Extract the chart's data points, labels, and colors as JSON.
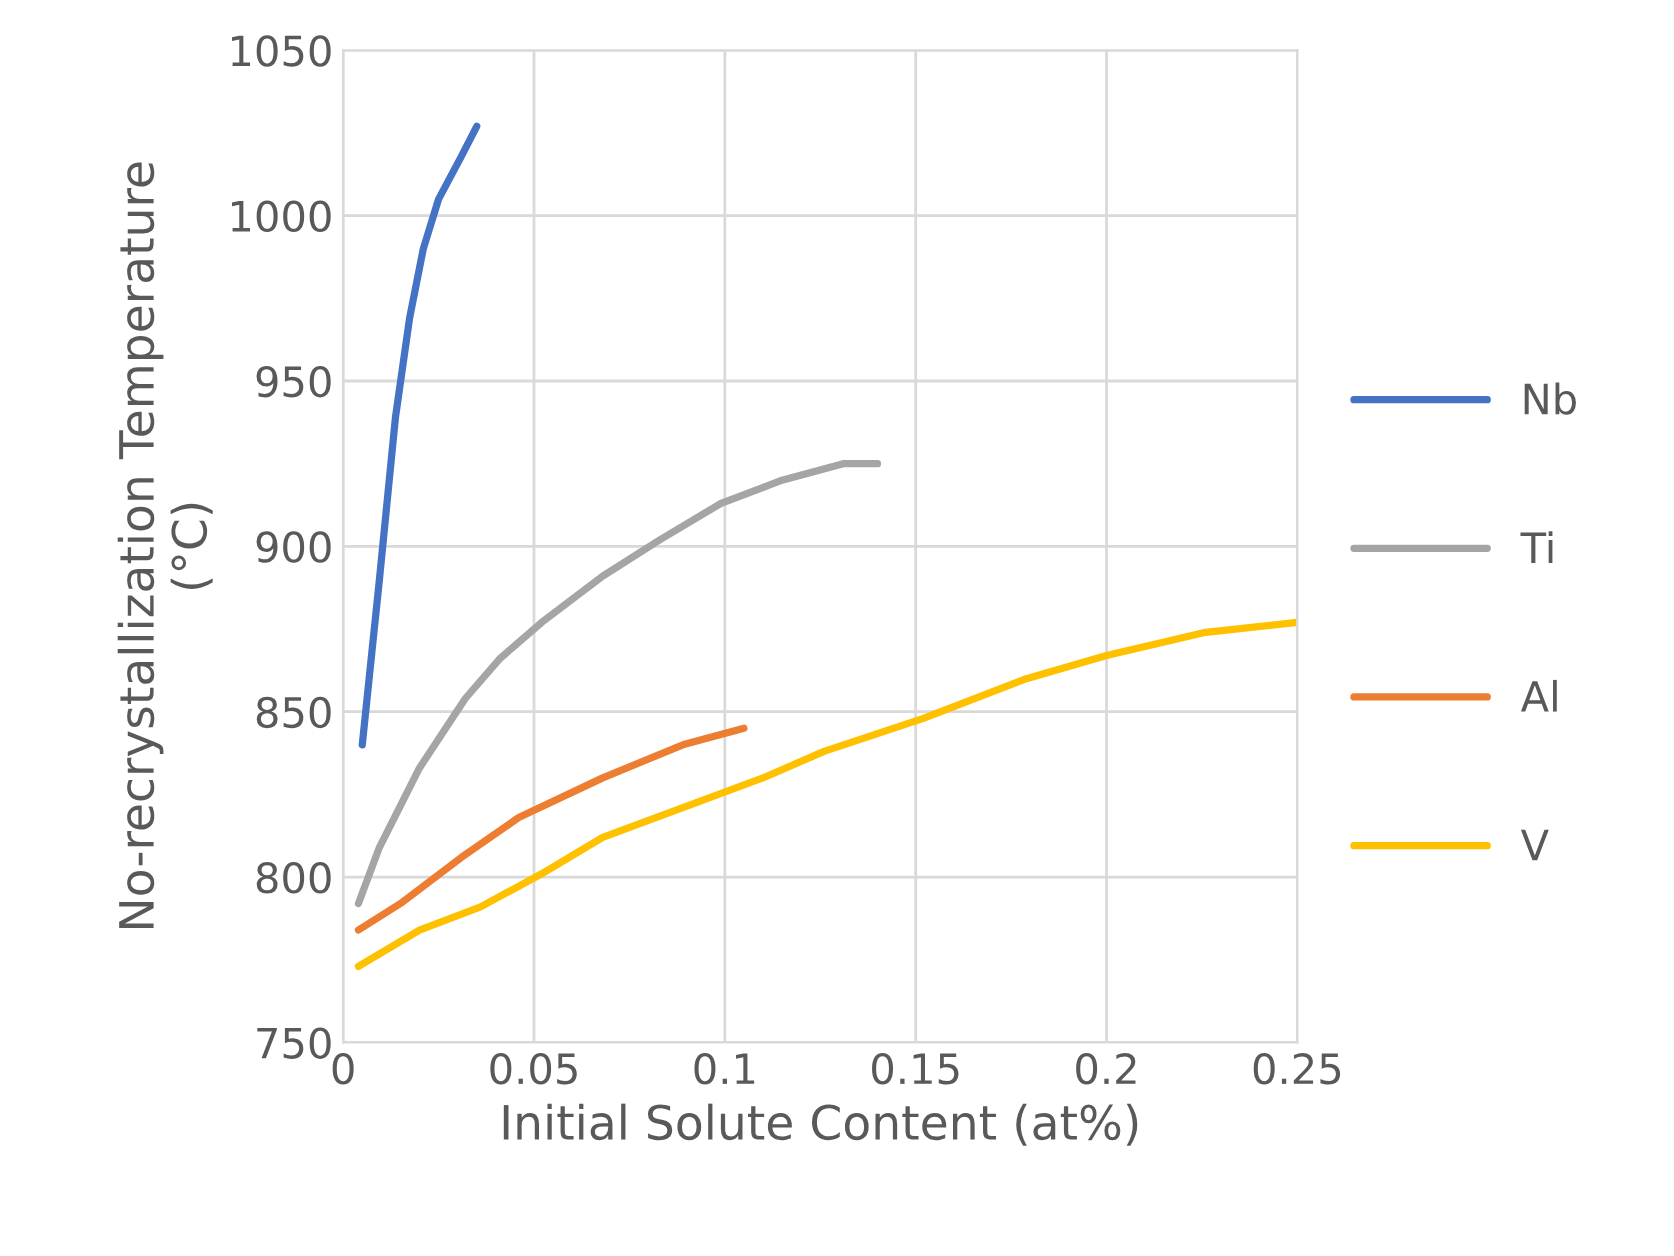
{
  "chart_data": {
    "type": "line",
    "xlabel": "Initial Solute Content (at%)",
    "ylabel": "No-recrystallization Temperature\n(°C)",
    "xlim": [
      0,
      0.25
    ],
    "xticks": [
      {
        "value": 0,
        "label": "0"
      },
      0.05,
      0.1,
      0.15,
      0.2,
      0.25
    ],
    "ylim": [
      750,
      1050
    ],
    "yticks": [
      750,
      800,
      850,
      900,
      950,
      1000,
      1050
    ],
    "grid": true,
    "legend": "right",
    "marker": "none",
    "line_style": "solid",
    "series": [
      {
        "name": "Nb",
        "color": "#4472c4",
        "x": [
          0.005,
          0.0095,
          0.0137,
          0.0174,
          0.021,
          0.025,
          0.031,
          0.035
        ],
        "values": [
          840,
          890,
          939,
          969,
          990,
          1005,
          1018,
          1027
        ]
      },
      {
        "name": "Ti",
        "color": "#a5a5a5",
        "x": [
          0.004,
          0.0095,
          0.02,
          0.032,
          0.041,
          0.052,
          0.068,
          0.083,
          0.099,
          0.115,
          0.131,
          0.14
        ],
        "values": [
          792,
          809,
          833,
          854,
          866,
          877,
          891,
          902,
          913,
          920,
          925,
          925
        ]
      },
      {
        "name": "Al",
        "color": "#ed7d31",
        "x": [
          0.004,
          0.015,
          0.031,
          0.046,
          0.068,
          0.089,
          0.105
        ],
        "values": [
          784,
          792,
          806,
          818,
          830,
          840,
          845
        ]
      },
      {
        "name": "V",
        "color": "#ffc000",
        "x": [
          0.004,
          0.02,
          0.036,
          0.052,
          0.068,
          0.089,
          0.11,
          0.126,
          0.152,
          0.179,
          0.2,
          0.226,
          0.25
        ],
        "values": [
          773,
          784,
          791,
          801,
          812,
          821,
          830,
          838,
          848,
          860,
          867,
          874,
          877
        ]
      }
    ]
  }
}
